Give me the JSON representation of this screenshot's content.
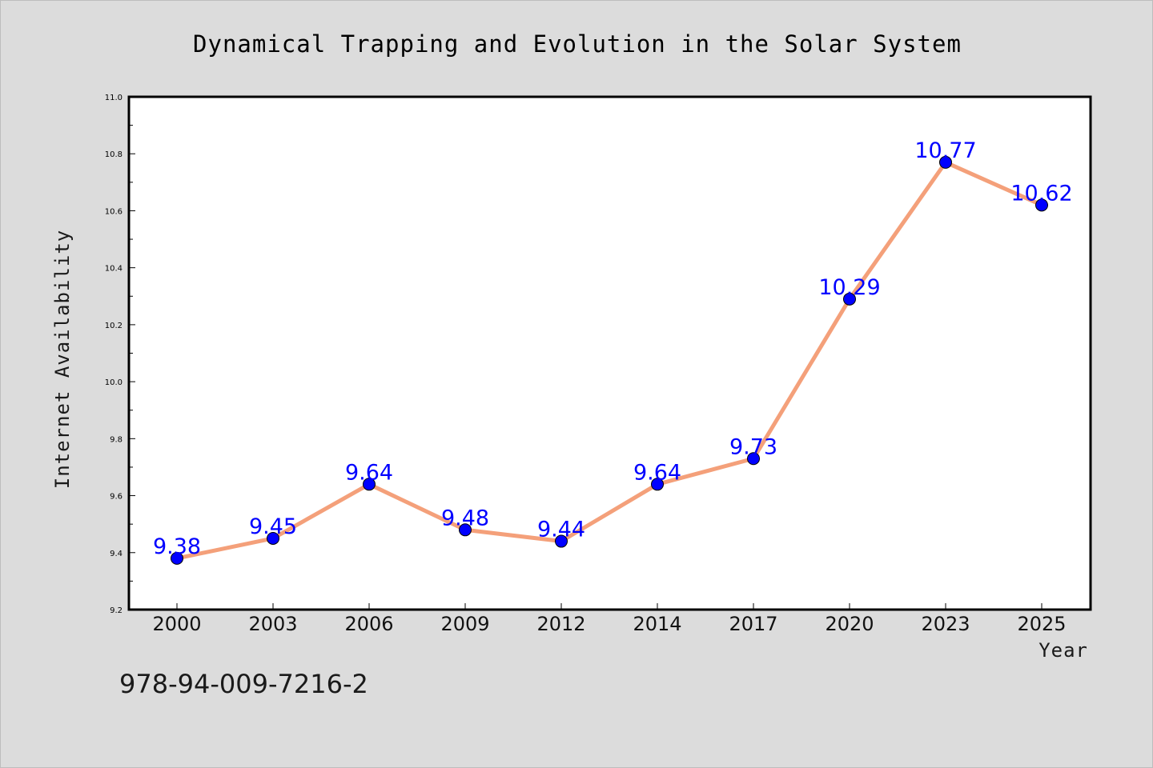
{
  "chart_data": {
    "type": "line",
    "title": "Dynamical Trapping and Evolution in the Solar System",
    "xlabel": "Year",
    "ylabel": "Internet Availability",
    "categories": [
      "2000",
      "2003",
      "2006",
      "2009",
      "2012",
      "2014",
      "2017",
      "2020",
      "2023",
      "2025"
    ],
    "values": [
      9.38,
      9.45,
      9.64,
      9.48,
      9.44,
      9.64,
      9.73,
      10.29,
      10.77,
      10.62
    ],
    "data_labels": [
      "9.38",
      "9.45",
      "9.64",
      "9.48",
      "9.44",
      "9.64",
      "9.73",
      "10.29",
      "10.77",
      "10.62"
    ],
    "ylim": [
      9.2,
      11.0
    ],
    "yticks": [
      9.2,
      9.4,
      9.6,
      9.8,
      10.0,
      10.2,
      10.4,
      10.6,
      10.8,
      11.0
    ],
    "ytick_labels": [
      "9.2",
      "9.4",
      "9.6",
      "9.8",
      "10.0",
      "10.2",
      "10.4",
      "10.6",
      "10.8",
      "11.0"
    ],
    "grid": false,
    "line_color": "#f4a07a",
    "marker_color": "#0000ff",
    "label_color": "#0000ff",
    "background_color": "#dcdcdc",
    "plot_background": "#ffffff"
  },
  "footer": {
    "text": "978-94-009-7216-2"
  }
}
